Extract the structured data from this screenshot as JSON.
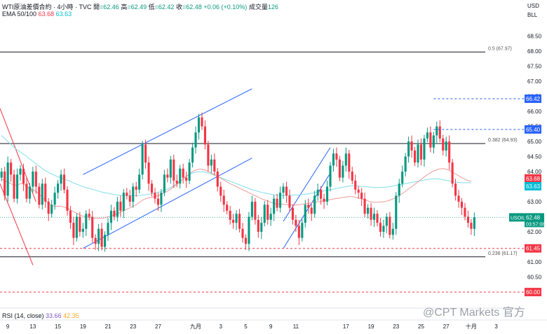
{
  "header": {
    "symbol_line": "WTI原油差價合約 · 4小時 · TVC",
    "ohlc": [
      {
        "label": "開",
        "value": "=62.46"
      },
      {
        "label": "高",
        "value": "=62.49"
      },
      {
        "label": "低",
        "value": "=62.42"
      },
      {
        "label": "收",
        "value": "=62.48"
      }
    ],
    "change": "+0.06 (+0.10%)",
    "volume_label": "成交量",
    "volume_value": "126",
    "ema_label": "EMA 50/100",
    "ema_fast": "63.68",
    "ema_slow": "63.63",
    "currency": "USD",
    "currency2": "BLL"
  },
  "rsi_label": "RSI (14, close)",
  "rsi_values": [
    "33.66",
    "42.35"
  ],
  "watermark": "@CPT Markets 官方",
  "colors": {
    "up": "#089981",
    "down": "#f23645",
    "ema_fast": "#f23645",
    "ema_slow": "#00bcd4",
    "channel": "#2962ff",
    "level": "#131722",
    "price_badge": "#089981",
    "level_badge_blue": "#2962ff",
    "level_badge_red": "#f23645"
  },
  "chart_data": {
    "type": "candlestick",
    "instrument": "USOIL",
    "ylim": [
      59.7,
      69.0
    ],
    "y_ticks": [
      "60.00",
      "60.50",
      "61.00",
      "61.50",
      "62.00",
      "62.50",
      "63.00",
      "63.50",
      "64.00",
      "64.50",
      "65.00",
      "65.50",
      "66.00",
      "66.50",
      "67.00",
      "67.50",
      "68.00",
      "68.50"
    ],
    "x_ticks": [
      "9",
      "13",
      "15",
      "19",
      "21",
      "23",
      "27",
      "九月",
      "3",
      "5",
      "9",
      "11",
      "17",
      "19",
      "23",
      "25",
      "27",
      "十月",
      "3"
    ],
    "x_tick_index": [
      2,
      10,
      18,
      26,
      34,
      42,
      50,
      62,
      70,
      78,
      86,
      94,
      110,
      118,
      126,
      134,
      142,
      150,
      158
    ],
    "closes": [
      64.0,
      63.2,
      64.3,
      63.9,
      63.1,
      63.9,
      64.1,
      63.6,
      63.1,
      63.5,
      64.0,
      63.5,
      62.9,
      63.6,
      63.0,
      62.6,
      62.9,
      63.3,
      63.6,
      63.9,
      63.4,
      62.7,
      62.3,
      61.8,
      62.5,
      62.0,
      62.1,
      62.6,
      62.5,
      61.8,
      61.6,
      62.1,
      61.5,
      61.9,
      62.3,
      62.7,
      62.5,
      63.0,
      62.7,
      63.3,
      63.2,
      63.0,
      63.5,
      63.4,
      63.9,
      64.9,
      64.3,
      63.6,
      63.3,
      63.1,
      62.9,
      63.3,
      63.9,
      63.8,
      64.4,
      63.7,
      63.6,
      64.1,
      63.8,
      63.7,
      64.3,
      64.8,
      65.3,
      65.8,
      65.5,
      64.9,
      64.2,
      64.4,
      64.0,
      63.5,
      63.2,
      62.9,
      62.7,
      62.4,
      62.3,
      62.6,
      62.1,
      61.8,
      61.6,
      62.5,
      63.0,
      62.4,
      62.0,
      62.3,
      62.9,
      62.4,
      62.6,
      63.1,
      62.8,
      63.3,
      63.5,
      63.2,
      62.8,
      62.4,
      62.2,
      61.8,
      62.3,
      62.9,
      62.8,
      62.6,
      63.2,
      63.4,
      63.1,
      63.0,
      63.5,
      64.2,
      64.6,
      64.4,
      63.8,
      64.2,
      64.6,
      64.0,
      63.7,
      63.4,
      63.3,
      63.1,
      62.6,
      62.8,
      62.4,
      62.6,
      62.3,
      62.0,
      62.2,
      62.5,
      61.9,
      62.1,
      63.2,
      63.6,
      64.0,
      64.5,
      65.0,
      64.7,
      64.3,
      64.9,
      64.4,
      65.1,
      65.3,
      64.8,
      65.2,
      65.5,
      65.1,
      64.7,
      65.0,
      64.3,
      63.6,
      63.2,
      63.0,
      62.8,
      62.5,
      62.3,
      62.1,
      62.48
    ],
    "ema_50": [
      63.75,
      63.7,
      63.65,
      63.6,
      63.55,
      63.55,
      63.6,
      63.6,
      63.5,
      63.45,
      63.4,
      63.35,
      63.25,
      63.15,
      63.05,
      62.95,
      62.88,
      62.85,
      62.85,
      62.85,
      62.82,
      62.78,
      62.73,
      62.67,
      62.62,
      62.56,
      62.52,
      62.5,
      62.48,
      62.46,
      62.45,
      62.45,
      62.45,
      62.47,
      62.5,
      62.53,
      62.56,
      62.6,
      62.65,
      62.7,
      62.75,
      62.8,
      62.85,
      62.9,
      62.97,
      63.05,
      63.1,
      63.13,
      63.15,
      63.17,
      63.2,
      63.25,
      63.3,
      63.35,
      63.42,
      63.5,
      63.58,
      63.67,
      63.76,
      63.84,
      63.92,
      64.0,
      64.05,
      64.08,
      64.08,
      64.05,
      64.0,
      63.95,
      63.9,
      63.84,
      63.78,
      63.72,
      63.66,
      63.6,
      63.55,
      63.5,
      63.45,
      63.4,
      63.35,
      63.3,
      63.25,
      63.2,
      63.15,
      63.1,
      63.06,
      63.02,
      62.98,
      62.95,
      62.93,
      62.92,
      62.91,
      62.9,
      62.89,
      62.89,
      62.89,
      62.9,
      62.91,
      62.93,
      62.95,
      62.96,
      62.98,
      63.0,
      63.01,
      63.03,
      63.05,
      63.07,
      63.09,
      63.11,
      63.12,
      63.14,
      63.16,
      63.17,
      63.17,
      63.15,
      63.12,
      63.09,
      63.06,
      63.03,
      63.0,
      62.98,
      62.98,
      62.99,
      63.0,
      63.02,
      63.05,
      63.09,
      63.14,
      63.2,
      63.27,
      63.35,
      63.43,
      63.5,
      63.58,
      63.66,
      63.74,
      63.82,
      63.9,
      63.96,
      64.02,
      64.06,
      64.09,
      64.1,
      64.08,
      64.04,
      63.98,
      63.92,
      63.86,
      63.8,
      63.75,
      63.7,
      63.68
    ],
    "ema_100": [
      65.2,
      65.1,
      65.0,
      64.9,
      64.8,
      64.72,
      64.65,
      64.58,
      64.5,
      64.42,
      64.34,
      64.26,
      64.18,
      64.1,
      64.03,
      63.97,
      63.92,
      63.87,
      63.83,
      63.79,
      63.75,
      63.71,
      63.67,
      63.62,
      63.58,
      63.54,
      63.5,
      63.47,
      63.44,
      63.41,
      63.38,
      63.35,
      63.32,
      63.3,
      63.28,
      63.26,
      63.24,
      63.22,
      63.21,
      63.2,
      63.2,
      63.2,
      63.2,
      63.2,
      63.21,
      63.22,
      63.23,
      63.25,
      63.27,
      63.29,
      63.31,
      63.34,
      63.38,
      63.42,
      63.47,
      63.53,
      63.6,
      63.68,
      63.76,
      63.84,
      63.9,
      63.95,
      63.98,
      64.0,
      64.0,
      63.98,
      63.95,
      63.92,
      63.88,
      63.84,
      63.8,
      63.76,
      63.72,
      63.68,
      63.64,
      63.6,
      63.56,
      63.52,
      63.48,
      63.44,
      63.4,
      63.37,
      63.34,
      63.31,
      63.29,
      63.27,
      63.25,
      63.23,
      63.22,
      63.21,
      63.21,
      63.21,
      63.21,
      63.22,
      63.22,
      63.23,
      63.24,
      63.25,
      63.26,
      63.28,
      63.3,
      63.32,
      63.34,
      63.36,
      63.38,
      63.4,
      63.42,
      63.44,
      63.46,
      63.48,
      63.5,
      63.52,
      63.53,
      63.53,
      63.52,
      63.51,
      63.5,
      63.49,
      63.48,
      63.47,
      63.47,
      63.47,
      63.48,
      63.49,
      63.5,
      63.52,
      63.54,
      63.56,
      63.58,
      63.6,
      63.62,
      63.64,
      63.66,
      63.68,
      63.7,
      63.72,
      63.74,
      63.75,
      63.76,
      63.76,
      63.75,
      63.73,
      63.71,
      63.69,
      63.67,
      63.65,
      63.64,
      63.63,
      63.63,
      63.63,
      63.63
    ],
    "levels": [
      {
        "label": "0.5 (67.97)",
        "value": 67.97
      },
      {
        "label": "0.382 (64.93)",
        "value": 64.93
      },
      {
        "label": "0.236 (61.17)",
        "value": 61.17
      }
    ],
    "dashed_levels": [
      {
        "value": 66.42,
        "label": "66.42",
        "badge": "blue"
      },
      {
        "value": 65.4,
        "label": "65.40",
        "badge": "blue"
      },
      {
        "value": 61.45,
        "label": "61.45",
        "badge": "red"
      },
      {
        "value": 60.0,
        "label": "60.00",
        "badge": "red"
      }
    ],
    "price_labels": [
      {
        "label": "63.68",
        "value": 63.68,
        "color": "red"
      },
      {
        "label": "63.63",
        "value": 63.63,
        "color": "cyan"
      }
    ],
    "last_price": {
      "symbol": "USOIL",
      "value": "62.48",
      "countdown": "03:57:08"
    },
    "channels": [
      {
        "start_index": 26,
        "end_index": 80
      },
      {
        "start_index": 90,
        "end_index": 105
      }
    ]
  }
}
